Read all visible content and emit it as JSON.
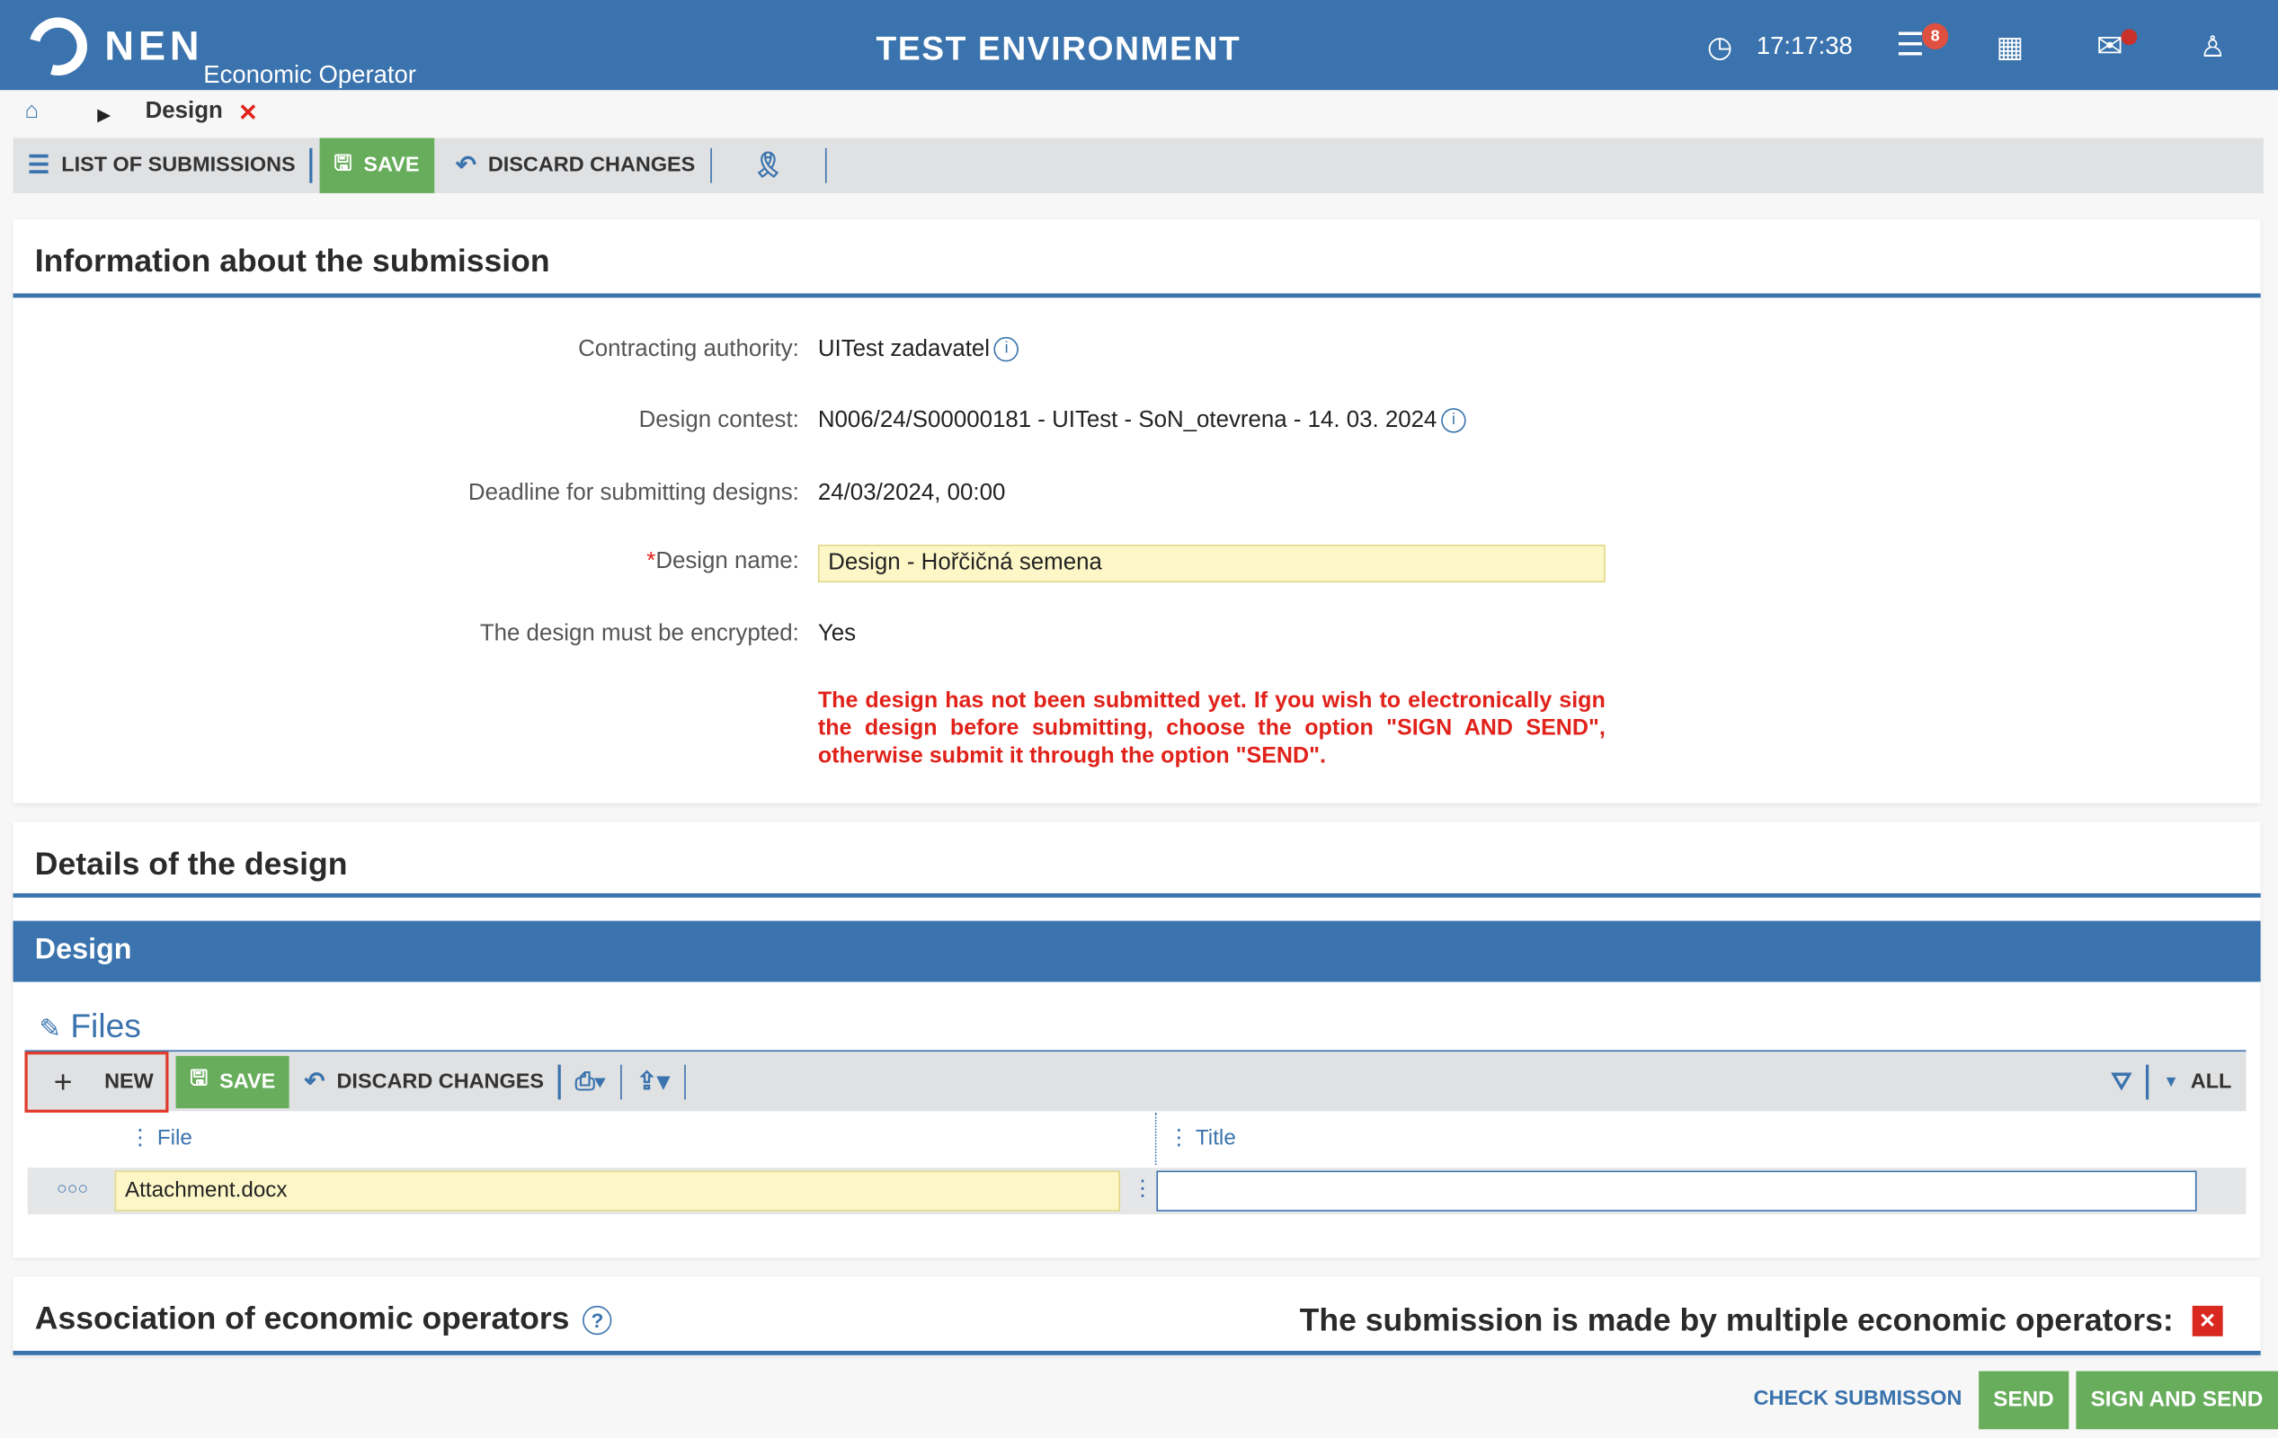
{
  "header": {
    "logo": "NEN",
    "subtitle": "Economic Operator",
    "environment": "TEST ENVIRONMENT",
    "time": "17:17:38",
    "notifications_count": "8",
    "icons": [
      "clock-icon",
      "menu-icon",
      "calendar-icon",
      "mail-icon",
      "user-icon"
    ]
  },
  "breadcrumb": {
    "current": "Design"
  },
  "toolbar": {
    "list": "LIST OF SUBMISSIONS",
    "save": "SAVE",
    "discard": "DISCARD CHANGES"
  },
  "info": {
    "title": "Information about the submission",
    "fields": [
      {
        "label": "Contracting authority:",
        "value": "UITest zadavatel"
      },
      {
        "label": "Design contest:",
        "value": "N006/24/S00000181 - UITest - SoN_otevrena - 14. 03. 2024"
      },
      {
        "label": "Deadline for submitting designs:",
        "value": "24/03/2024, 00:00"
      },
      {
        "label": "Design name:",
        "value": "Design - Hořčičná semena",
        "required": "*"
      },
      {
        "label": "The design must be encrypted:",
        "value": "Yes"
      }
    ],
    "warning": "The design has not been submitted yet. If you wish to electronically sign the design before submitting, choose the option \"SIGN AND SEND\", otherwise submit it through the option \"SEND\"."
  },
  "details": {
    "title": "Details of the design",
    "section": "Design",
    "files_title": "Files",
    "toolbar": {
      "new": "NEW",
      "save": "SAVE",
      "discard": "DISCARD CHANGES",
      "filter_all": "ALL"
    },
    "columns": [
      "File",
      "Title"
    ],
    "rows": [
      {
        "file": "Attachment.docx",
        "title": ""
      }
    ]
  },
  "association": {
    "title": "Association of economic operators",
    "multiple_label": "The submission is made by multiple economic operators:"
  },
  "footer": {
    "check": "CHECK SUBMISSON",
    "send": "SEND",
    "sign_send": "SIGN AND SEND"
  },
  "colors": {
    "brand": "#3a73ad",
    "green": "#67ad5b",
    "warning": "#e0221a"
  }
}
